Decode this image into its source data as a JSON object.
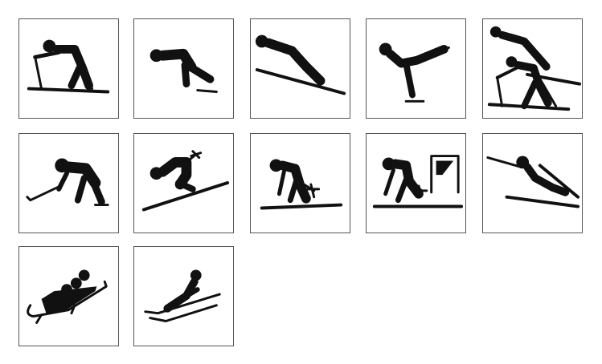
{
  "pictograms": [
    {
      "id": "cross-country-skiing"
    },
    {
      "id": "speed-skating"
    },
    {
      "id": "ski-jumping"
    },
    {
      "id": "figure-skating"
    },
    {
      "id": "nordic-combined"
    },
    {
      "id": "ice-hockey"
    },
    {
      "id": "downhill-skiing"
    },
    {
      "id": "slalom-skiing"
    },
    {
      "id": "giant-slalom-skiing"
    },
    {
      "id": "biathlon"
    },
    {
      "id": "bobsleigh"
    },
    {
      "id": "luge"
    }
  ]
}
